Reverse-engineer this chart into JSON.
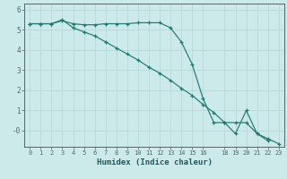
{
  "xlabel": "Humidex (Indice chaleur)",
  "background_color": "#cceaea",
  "grid_color": "#bbdada",
  "line_color": "#1e7c6e",
  "line1_x": [
    0,
    1,
    2,
    3,
    4,
    5,
    6,
    7,
    8,
    9,
    10,
    11,
    12,
    13,
    14,
    15,
    16,
    17,
    18,
    19,
    20,
    21,
    22
  ],
  "line1_y": [
    5.3,
    5.3,
    5.3,
    5.45,
    5.3,
    5.25,
    5.25,
    5.3,
    5.3,
    5.3,
    5.35,
    5.35,
    5.35,
    5.1,
    4.4,
    3.3,
    1.6,
    0.4,
    0.4,
    -0.15,
    1.0,
    -0.15,
    -0.5
  ],
  "line2_x": [
    0,
    1,
    2,
    3,
    4,
    5,
    6,
    7,
    8,
    9,
    10,
    11,
    12,
    13,
    14,
    15,
    16,
    17,
    18,
    19,
    20,
    21,
    22,
    23
  ],
  "line2_y": [
    5.3,
    5.3,
    5.3,
    5.5,
    5.1,
    4.9,
    4.7,
    4.4,
    4.1,
    3.8,
    3.5,
    3.15,
    2.85,
    2.5,
    2.1,
    1.75,
    1.3,
    0.9,
    0.4,
    0.4,
    0.4,
    -0.15,
    -0.4,
    -0.65
  ],
  "ylim": [
    -0.8,
    6.3
  ],
  "yticks": [
    6,
    5,
    4,
    3,
    2,
    1,
    0
  ],
  "ytick_labels": [
    "6",
    "5",
    "4",
    "3",
    "2",
    "1",
    "-0"
  ],
  "xlim": [
    -0.5,
    23.5
  ],
  "xticks": [
    0,
    1,
    2,
    3,
    4,
    5,
    6,
    7,
    8,
    9,
    10,
    11,
    12,
    13,
    14,
    15,
    16,
    18,
    19,
    20,
    21,
    22,
    23
  ],
  "xtick_labels": [
    "0",
    "1",
    "2",
    "3",
    "4",
    "5",
    "6",
    "7",
    "8",
    "9",
    "10",
    "11",
    "12",
    "13",
    "14",
    "15",
    "16",
    "18",
    "19",
    "20",
    "21",
    "22",
    "23"
  ]
}
